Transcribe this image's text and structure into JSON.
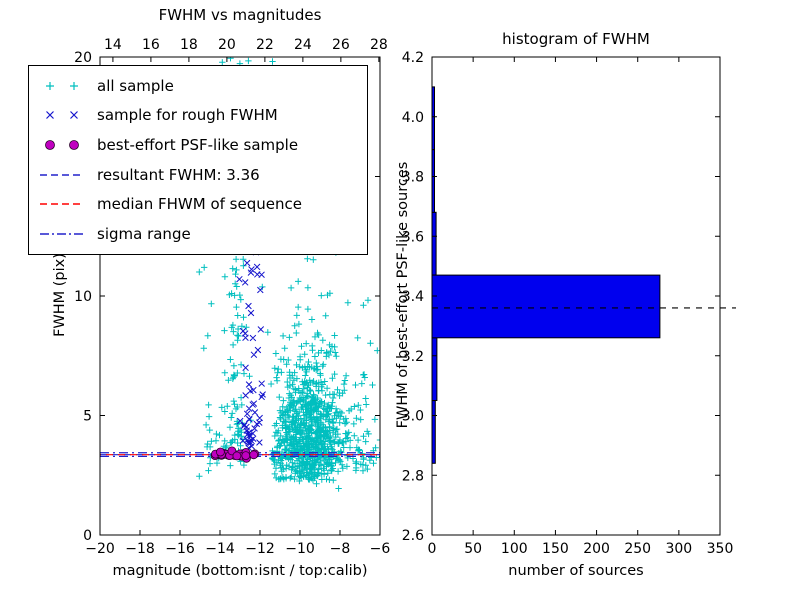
{
  "chart_data": [
    {
      "name": "fwhm-vs-magnitudes",
      "type": "scatter",
      "title": "FWHM vs magnitudes",
      "xlabel": "magnitude (bottom:isnt / top:calib)",
      "ylabel": "FWHM (pix)",
      "xlim": [
        -20,
        -6
      ],
      "ylim": [
        0,
        20
      ],
      "top_xlim": [
        13.32,
        28.06
      ],
      "x_ticks": {
        "values": [
          -20,
          -18,
          -16,
          -14,
          -12,
          -10,
          -8,
          -6
        ],
        "labels": [
          "−20",
          "−18",
          "−16",
          "−14",
          "−12",
          "−10",
          "−8",
          "−6"
        ]
      },
      "top_x_ticks": {
        "values": [
          14,
          16,
          18,
          20,
          22,
          24,
          26,
          28
        ],
        "labels": [
          "14",
          "16",
          "18",
          "20",
          "22",
          "24",
          "26",
          "28"
        ]
      },
      "y_ticks": {
        "values": [
          0,
          5,
          10,
          15,
          20
        ],
        "labels": [
          "0",
          "5",
          "10",
          "15",
          "20"
        ]
      },
      "resultant_fwhm": 3.36,
      "series": [
        {
          "name": "all sample",
          "marker": "plus",
          "color": "#00bfbf",
          "clusters": [
            {
              "count": 600,
              "x": {
                "dist": "normal",
                "mean": -9.6,
                "sd": 1.0,
                "min": -11.4,
                "max": -6.05
              },
              "y": {
                "dist": "lognormal",
                "mu": 0.95,
                "sigma": 0.6,
                "offset": 1.6,
                "max": 15.5
              }
            },
            {
              "count": 300,
              "x": {
                "dist": "normal",
                "mean": -9.4,
                "sd": 0.8,
                "min": -11.2,
                "max": -6.6
              },
              "y": {
                "dist": "normal",
                "mean": 4.3,
                "sd": 1.1,
                "min": 2.2,
                "max": 7.6
              }
            },
            {
              "count": 95,
              "x": {
                "dist": "normal",
                "mean": -13.2,
                "sd": 0.3,
                "min": -14.0,
                "max": -12.4
              },
              "y": {
                "dist": "uniform",
                "a": 3.2,
                "b": 20
              }
            },
            {
              "count": 55,
              "x": {
                "dist": "uniform",
                "a": -13.9,
                "b": -9.6
              },
              "y": {
                "dist": "uniform",
                "a": 12,
                "b": 20
              }
            },
            {
              "count": 45,
              "x": {
                "dist": "uniform",
                "a": -14.7,
                "b": -12.8
              },
              "y": {
                "dist": "normal",
                "mean": 3.7,
                "sd": 0.55,
                "min": 2.5,
                "max": 5.6
              }
            },
            {
              "count": 40,
              "x": {
                "dist": "uniform",
                "a": -7.3,
                "b": -5.75
              },
              "y": {
                "dist": "lognormal",
                "mu": 0.8,
                "sigma": 0.55,
                "offset": 1.7,
                "max": 10
              }
            },
            {
              "count": 35,
              "x": {
                "dist": "uniform",
                "a": -15.1,
                "b": -6.2
              },
              "y": {
                "dist": "uniform",
                "a": 2.2,
                "b": 12.5
              }
            }
          ]
        },
        {
          "name": "sample for rough FWHM",
          "marker": "cross",
          "color": "#1414cc",
          "clusters": [
            {
              "count": 40,
              "x": {
                "dist": "normal",
                "mean": -12.45,
                "sd": 0.25,
                "min": -13.0,
                "max": -11.8
              },
              "y": {
                "dist": "lognormal",
                "mu": 0.5,
                "sigma": 0.7,
                "offset": 3.1,
                "max": 8.6
              }
            },
            {
              "count": 12,
              "x": {
                "dist": "normal",
                "mean": -12.5,
                "sd": 0.3,
                "min": -13.2,
                "max": -11.8
              },
              "y": {
                "dist": "uniform",
                "a": 9.2,
                "b": 12.4
              }
            },
            {
              "count": 6,
              "x": {
                "dist": "normal",
                "mean": -12.3,
                "sd": 0.3,
                "min": -13.0,
                "max": -11.7
              },
              "y": {
                "dist": "uniform",
                "a": 7.6,
                "b": 9.1
              }
            }
          ]
        },
        {
          "name": "best-effort PSF-like sample",
          "marker": "circle",
          "color": "#c000c0",
          "edge": "#2a002a",
          "clusters": [
            {
              "count": 25,
              "x": {
                "dist": "uniform",
                "a": -14.55,
                "b": -11.9
              },
              "y": {
                "dist": "normal",
                "mean": 3.37,
                "sd": 0.06,
                "min": 3.2,
                "max": 3.55
              }
            }
          ]
        }
      ],
      "hlines": [
        {
          "name": "resultant FWHM",
          "y": 3.36,
          "style": "dashed",
          "color": "#2222cc"
        },
        {
          "name": "median FHWM of sequence",
          "y": 3.36,
          "style": "dashed",
          "color": "#ff0000",
          "offset": 6
        },
        {
          "name": "sigma range low",
          "y": 3.29,
          "style": "dashdot",
          "color": "#2222cc"
        },
        {
          "name": "sigma range high",
          "y": 3.44,
          "style": "dashdot",
          "color": "#2222cc"
        }
      ],
      "legend": [
        {
          "label": "all sample",
          "type": "marker",
          "marker": "plus",
          "color": "#00bfbf"
        },
        {
          "label": "sample for rough FWHM",
          "type": "marker",
          "marker": "cross",
          "color": "#1414cc"
        },
        {
          "label": "best-effort PSF-like sample",
          "type": "marker",
          "marker": "circle",
          "color": "#c000c0"
        },
        {
          "label": "resultant FWHM: 3.36",
          "type": "line",
          "style": "dashed",
          "color": "#2222cc"
        },
        {
          "label": "median FHWM of sequence",
          "type": "line",
          "style": "dashed",
          "color": "#ff0000"
        },
        {
          "label": "sigma range",
          "type": "line",
          "style": "dashdot",
          "color": "#2222cc"
        }
      ]
    },
    {
      "name": "histogram-of-fwhm",
      "type": "bar",
      "orientation": "horizontal",
      "title": "histogram of FWHM",
      "xlabel": "number of sources",
      "ylabel": "FWHM of best-effort PSF-like sources",
      "xlim": [
        0,
        350
      ],
      "ylim": [
        2.6,
        4.2
      ],
      "x_ticks": {
        "values": [
          0,
          50,
          100,
          150,
          200,
          250,
          300,
          350
        ],
        "labels": [
          "0",
          "50",
          "100",
          "150",
          "200",
          "250",
          "300",
          "350"
        ]
      },
      "y_ticks": {
        "values": [
          2.6,
          2.8,
          3.0,
          3.2,
          3.4,
          3.6,
          3.8,
          4.0,
          4.2
        ],
        "labels": [
          "2.6",
          "2.8",
          "3.0",
          "3.2",
          "3.4",
          "3.6",
          "3.8",
          "4.0",
          "4.2"
        ]
      },
      "bar_color": "#0000ee",
      "bar_edge": "#000000",
      "bins": [
        {
          "from": 2.84,
          "to": 3.05,
          "count": 4
        },
        {
          "from": 3.05,
          "to": 3.26,
          "count": 6
        },
        {
          "from": 3.26,
          "to": 3.47,
          "count": 277
        },
        {
          "from": 3.47,
          "to": 3.68,
          "count": 5
        },
        {
          "from": 3.68,
          "to": 3.89,
          "count": 3
        },
        {
          "from": 3.89,
          "to": 4.1,
          "count": 3
        }
      ],
      "median_line": {
        "y": 3.36,
        "style": "dashed",
        "color": "#000000"
      }
    }
  ]
}
